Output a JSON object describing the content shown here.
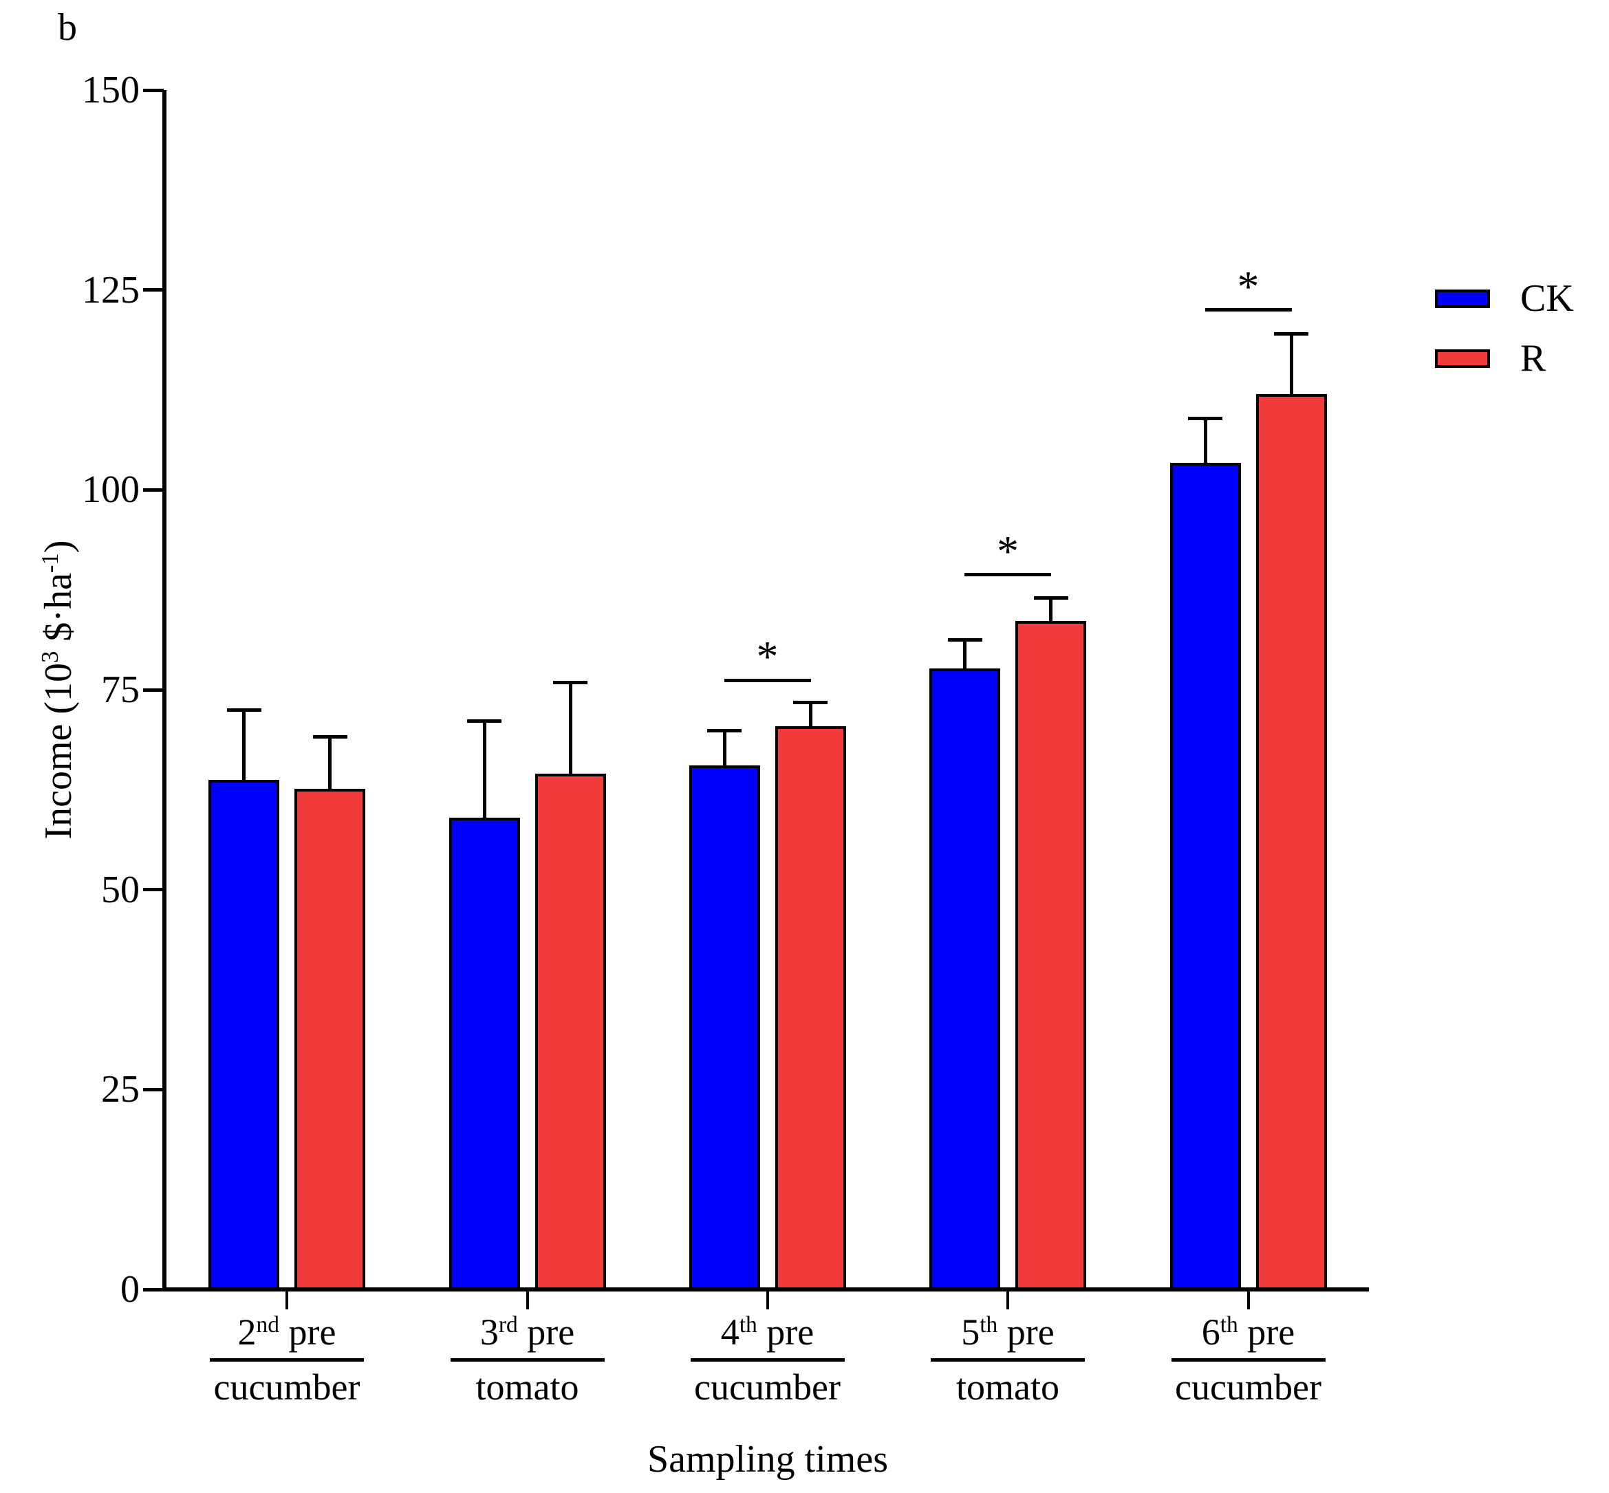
{
  "panel_label": "b",
  "chart_data": {
    "type": "bar",
    "title": "",
    "xlabel": "Sampling times",
    "ylabel": "Income (10³ $·ha⁻¹)",
    "ylabel_parts": [
      {
        "text": "Income (10"
      },
      {
        "text": "3",
        "sup": true
      },
      {
        "text": " $·ha"
      },
      {
        "text": "-1",
        "sup": true
      },
      {
        "text": ")"
      }
    ],
    "ylim": [
      0,
      150
    ],
    "yticks": [
      0,
      25,
      50,
      75,
      100,
      125,
      150
    ],
    "grid": false,
    "categories": [
      {
        "num": "2",
        "ord": "nd",
        "word": "pre",
        "crop": "cucumber"
      },
      {
        "num": "3",
        "ord": "rd",
        "word": "pre",
        "crop": "tomato"
      },
      {
        "num": "4",
        "ord": "th",
        "word": "pre",
        "crop": "cucumber"
      },
      {
        "num": "5",
        "ord": "th",
        "word": "pre",
        "crop": "tomato"
      },
      {
        "num": "6",
        "ord": "th",
        "word": "pre",
        "crop": "cucumber"
      }
    ],
    "series": [
      {
        "name": "CK",
        "color": "#0000FE",
        "values": [
          63.7,
          59.0,
          65.5,
          77.7,
          103.4
        ],
        "errors_plus": [
          8.8,
          12.1,
          4.4,
          3.5,
          5.5
        ]
      },
      {
        "name": "R",
        "color": "#F23B3B",
        "values": [
          62.6,
          64.5,
          70.4,
          83.6,
          112.0
        ],
        "errors_plus": [
          6.5,
          11.4,
          3.0,
          2.9,
          7.5
        ]
      }
    ],
    "significance": [
      {
        "group_index": 2,
        "marker": "*",
        "line_y": 76.2
      },
      {
        "group_index": 3,
        "marker": "*",
        "line_y": 89.4
      },
      {
        "group_index": 4,
        "marker": "*",
        "line_y": 122.5
      }
    ],
    "legend": {
      "position": "top-right",
      "entries": [
        {
          "label": "CK",
          "color": "#0000FE"
        },
        {
          "label": "R",
          "color": "#F23B3B"
        }
      ]
    }
  }
}
